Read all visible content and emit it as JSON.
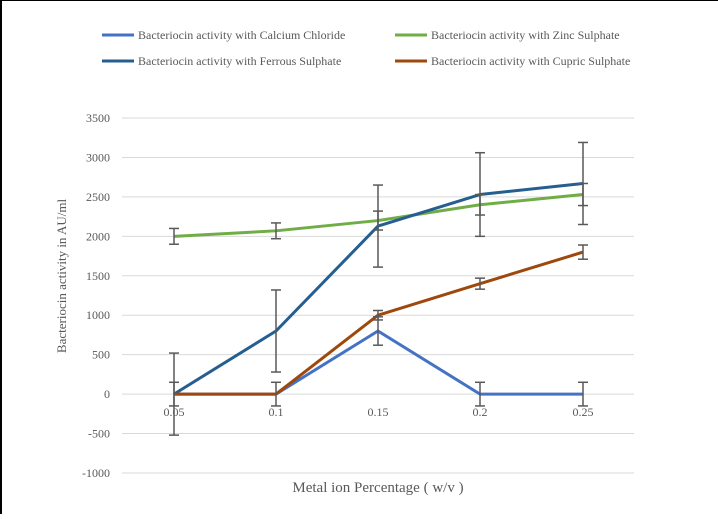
{
  "chart_data": {
    "type": "line",
    "title": "",
    "xlabel": "Metal ion Percentage ( w/v )",
    "ylabel": "Bacteriocin activity in AU/ml",
    "categories": [
      "0.05",
      "0.1",
      "0.15",
      "0.2",
      "0.25"
    ],
    "ylim": [
      -1000,
      3500
    ],
    "yticks": [
      "3500",
      "3000",
      "2500",
      "2000",
      "1500",
      "1000",
      "500",
      "0",
      "-500",
      "-1000"
    ],
    "ytick_values": [
      3500,
      3000,
      2500,
      2000,
      1500,
      1000,
      500,
      0,
      -500,
      -1000
    ],
    "grid": true,
    "legend_position": "top",
    "series": [
      {
        "name": "Bacteriocin activity with Calcium Chloride",
        "color": "#4472C4",
        "values": [
          0,
          0,
          800,
          0,
          0
        ],
        "errors": [
          150,
          150,
          180,
          150,
          150
        ]
      },
      {
        "name": "Bacteriocin activity with Zinc Sulphate",
        "color": "#70AD47",
        "values": [
          2000,
          2070,
          2200,
          2400,
          2530
        ],
        "errors": [
          100,
          100,
          120,
          130,
          140
        ]
      },
      {
        "name": "Bacteriocin activity with Ferrous Sulphate",
        "color": "#255E91",
        "values": [
          0,
          800,
          2130,
          2530,
          2670
        ],
        "errors": [
          520,
          520,
          520,
          530,
          520
        ]
      },
      {
        "name": "Bacteriocin activity with Cupric Sulphate",
        "color": "#9E480E",
        "values": [
          0,
          0,
          1000,
          1400,
          1800
        ],
        "errors": [
          0,
          0,
          60,
          70,
          90
        ]
      }
    ]
  }
}
